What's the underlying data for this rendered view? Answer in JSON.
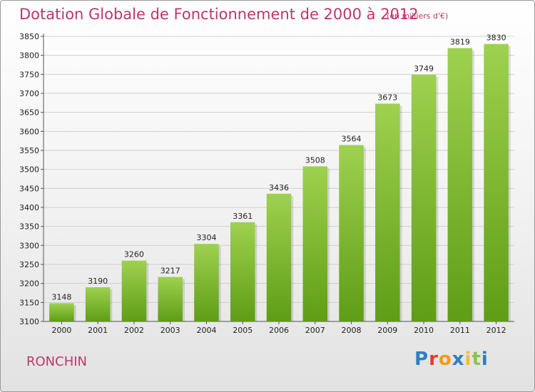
{
  "header": {
    "title": "Dotation Globale de Fonctionnement de 2000 à 2012",
    "subtitle": "(en milliers d'€)"
  },
  "footer": {
    "commune": "RONCHIN",
    "logo_text": "Proxiti",
    "logo_colors": [
      "#2e7fc2",
      "#e8392b",
      "#f29a1e",
      "#2e7fc2",
      "#f2c21e",
      "#8bc34a",
      "#2e7fc2"
    ]
  },
  "colors": {
    "accent": "#c0356b",
    "bar_light": "#9ed14f",
    "bar_dark": "#5f9d16",
    "grid": "#cfcfcf"
  },
  "chart_data": {
    "type": "bar",
    "title": "Dotation Globale de Fonctionnement de 2000 à 2012",
    "subtitle": "(en milliers d'€)",
    "xlabel": "",
    "ylabel": "",
    "categories": [
      "2000",
      "2001",
      "2002",
      "2003",
      "2004",
      "2005",
      "2006",
      "2007",
      "2008",
      "2009",
      "2010",
      "2011",
      "2012"
    ],
    "values": [
      3148,
      3190,
      3260,
      3217,
      3304,
      3361,
      3436,
      3508,
      3564,
      3673,
      3749,
      3819,
      3830
    ],
    "ylim": [
      3100,
      3850
    ],
    "yticks": [
      3100,
      3150,
      3200,
      3250,
      3300,
      3350,
      3400,
      3450,
      3500,
      3550,
      3600,
      3650,
      3700,
      3750,
      3800,
      3850
    ],
    "grid": true,
    "data_labels": true
  }
}
